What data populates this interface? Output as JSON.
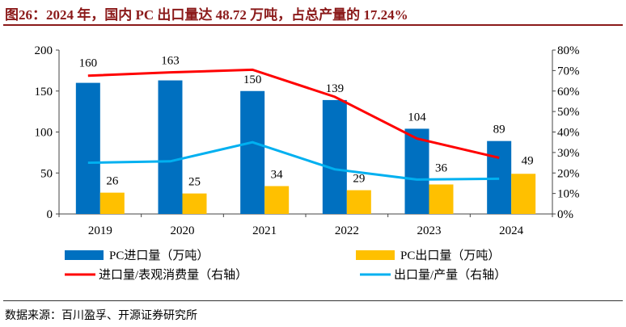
{
  "title": "图26：2024 年，国内 PC 出口量达 48.72 万吨，占总产量的 17.24%",
  "source": "数据来源：百川盈孚、开源证券研究所",
  "colors": {
    "import": "#0070C0",
    "export": "#FFC000",
    "ratio_import": "#FF0000",
    "ratio_export": "#00B0F0",
    "title": "#8B1A1A"
  },
  "chart_data": {
    "type": "bar+line",
    "categories": [
      "2019",
      "2020",
      "2021",
      "2022",
      "2023",
      "2024"
    ],
    "left_axis": {
      "ylim": [
        0,
        200
      ],
      "ticks": [
        "0",
        "50",
        "100",
        "150",
        "200"
      ]
    },
    "right_axis": {
      "ylim": [
        0,
        80
      ],
      "ticks": [
        "0%",
        "10%",
        "20%",
        "30%",
        "40%",
        "50%",
        "60%",
        "70%",
        "80%"
      ]
    },
    "grid": false,
    "legend_position": "bottom",
    "series": [
      {
        "name": "PC进口量（万吨）",
        "type": "bar",
        "axis": "left",
        "values": [
          160,
          163,
          150,
          139,
          104,
          89
        ],
        "labels": [
          "160",
          "163",
          "150",
          "139",
          "104",
          "89"
        ]
      },
      {
        "name": "PC出口量（万吨）",
        "type": "bar",
        "axis": "left",
        "values": [
          26,
          25,
          34,
          29,
          36,
          49
        ],
        "labels": [
          "26",
          "25",
          "34",
          "29",
          "36",
          "49"
        ]
      },
      {
        "name": "进口量/表观消费量（右轴）",
        "type": "line",
        "axis": "right",
        "values": [
          67.5,
          69.1,
          70.4,
          57.2,
          36.8,
          27.4
        ]
      },
      {
        "name": "出口量/产量（右轴）",
        "type": "line",
        "axis": "right",
        "values": [
          25.0,
          25.7,
          35.0,
          21.8,
          16.8,
          17.2
        ]
      }
    ]
  }
}
